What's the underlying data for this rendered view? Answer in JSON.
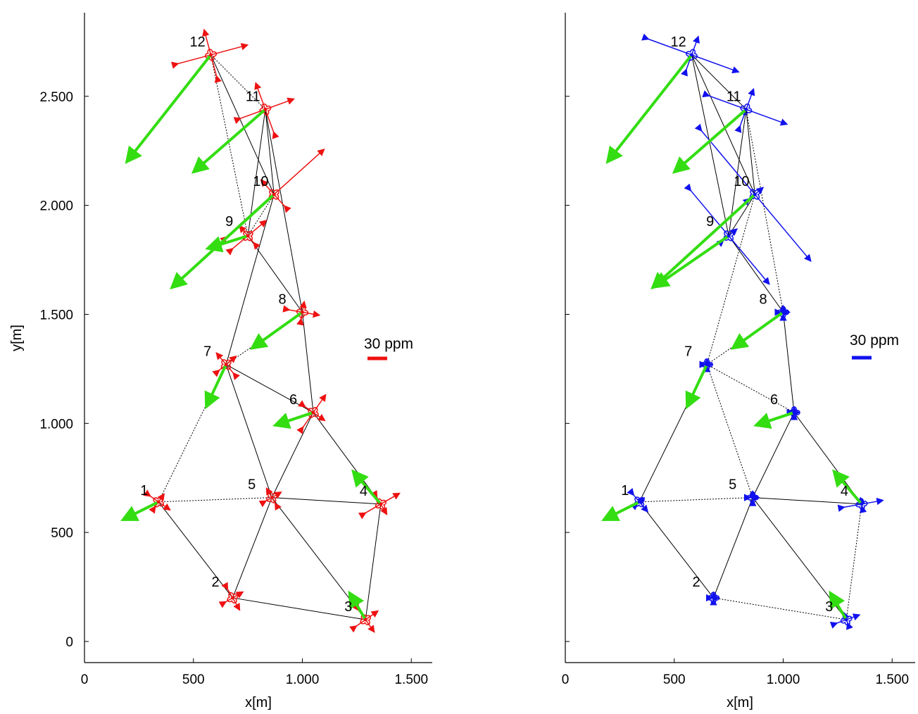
{
  "chart_data": [
    {
      "type": "network",
      "xlabel": "x[m]",
      "ylabel": "y[m]",
      "xlim": [
        0,
        1600
      ],
      "ylim": [
        -100,
        2900
      ],
      "xticks": [
        0,
        500,
        1000,
        1500
      ],
      "xtick_labels": [
        "0",
        "500",
        "1.000",
        "1.500"
      ],
      "yticks": [
        0,
        500,
        1000,
        1500,
        2000,
        2500
      ],
      "ytick_labels": [
        "0",
        "500",
        "1.000",
        "1.500",
        "2.000",
        "2.500"
      ],
      "y_axis_labels_shown": true,
      "accent_color": "#ee1111",
      "scale_label": "30 ppm",
      "points": [
        {
          "id": "1",
          "label": "1",
          "x": 340,
          "y": 640
        },
        {
          "id": "2",
          "label": "2",
          "x": 680,
          "y": 200
        },
        {
          "id": "3",
          "label": "3",
          "x": 1290,
          "y": 100
        },
        {
          "id": "4",
          "label": "4",
          "x": 1360,
          "y": 630
        },
        {
          "id": "5",
          "label": "5",
          "x": 860,
          "y": 660
        },
        {
          "id": "6",
          "label": "6",
          "x": 1050,
          "y": 1050
        },
        {
          "id": "7",
          "label": "7",
          "x": 650,
          "y": 1270
        },
        {
          "id": "8",
          "label": "8",
          "x": 1000,
          "y": 1510
        },
        {
          "id": "9",
          "label": "9",
          "x": 750,
          "y": 1860
        },
        {
          "id": "10",
          "label": "10",
          "x": 870,
          "y": 2050
        },
        {
          "id": "11",
          "label": "11",
          "x": 830,
          "y": 2440
        },
        {
          "id": "12",
          "label": "12",
          "x": 580,
          "y": 2690
        }
      ],
      "edges": [
        {
          "from": "1",
          "to": "2",
          "dashed": false
        },
        {
          "from": "1",
          "to": "5",
          "dashed": true
        },
        {
          "from": "1",
          "to": "7",
          "dashed": true
        },
        {
          "from": "2",
          "to": "5",
          "dashed": false
        },
        {
          "from": "2",
          "to": "3",
          "dashed": false
        },
        {
          "from": "3",
          "to": "5",
          "dashed": false
        },
        {
          "from": "3",
          "to": "4",
          "dashed": false
        },
        {
          "from": "4",
          "to": "5",
          "dashed": false
        },
        {
          "from": "4",
          "to": "6",
          "dashed": false
        },
        {
          "from": "5",
          "to": "6",
          "dashed": false
        },
        {
          "from": "5",
          "to": "7",
          "dashed": false
        },
        {
          "from": "6",
          "to": "7",
          "dashed": false
        },
        {
          "from": "6",
          "to": "8",
          "dashed": false
        },
        {
          "from": "7",
          "to": "8",
          "dashed": true
        },
        {
          "from": "7",
          "to": "10",
          "dashed": false
        },
        {
          "from": "8",
          "to": "9",
          "dashed": false
        },
        {
          "from": "8",
          "to": "11",
          "dashed": false
        },
        {
          "from": "9",
          "to": "11",
          "dashed": false
        },
        {
          "from": "9",
          "to": "10",
          "dashed": true
        },
        {
          "from": "10",
          "to": "11",
          "dashed": false
        },
        {
          "from": "10",
          "to": "12",
          "dashed": false
        },
        {
          "from": "11",
          "to": "12",
          "dashed": true
        },
        {
          "from": "9",
          "to": "12",
          "dashed": true
        }
      ],
      "displacements": [
        {
          "point": "1",
          "dx": -140,
          "dy": -70
        },
        {
          "point": "3",
          "dx": -60,
          "dy": 100
        },
        {
          "point": "4",
          "dx": -110,
          "dy": 130
        },
        {
          "point": "6",
          "dx": -150,
          "dy": -50
        },
        {
          "point": "7",
          "dx": -80,
          "dy": -170
        },
        {
          "point": "8",
          "dx": -210,
          "dy": -150
        },
        {
          "point": "9",
          "dx": -160,
          "dy": -50
        },
        {
          "point": "10",
          "dx": -450,
          "dy": -410
        },
        {
          "point": "11",
          "dx": -310,
          "dy": -270
        },
        {
          "point": "12",
          "dx": -370,
          "dy": -470
        }
      ],
      "strain_crosses": [
        {
          "point": "1",
          "a1": 55,
          "a2": 35,
          "ang": -35
        },
        {
          "point": "2",
          "a1": 55,
          "a2": 45,
          "ang": -60
        },
        {
          "point": "3",
          "a1": 60,
          "a2": 60,
          "ang": -55
        },
        {
          "point": "4",
          "a1": 45,
          "a2": 90,
          "ang": -60
        },
        {
          "point": "5",
          "a1": 40,
          "a2": 40,
          "ang": 30
        },
        {
          "point": "6",
          "a1": 55,
          "a2": 90,
          "ang": -35
        },
        {
          "point": "7",
          "a1": 50,
          "a2": 60,
          "ang": 40
        },
        {
          "point": "8",
          "a1": 70,
          "a2": 40,
          "ang": -10
        },
        {
          "point": "9",
          "a1": 100,
          "a2": 50,
          "ang": 40
        },
        {
          "point": "10",
          "a1": 300,
          "a2": 80,
          "ang": 42
        },
        {
          "point": "11",
          "a1": 130,
          "a2": 120,
          "ang": 20
        },
        {
          "point": "12",
          "a1": 165,
          "a2": 110,
          "ang": 15
        }
      ]
    },
    {
      "type": "network",
      "xlabel": "x[m]",
      "ylabel": "",
      "xlim": [
        0,
        1600
      ],
      "ylim": [
        -100,
        2900
      ],
      "xticks": [
        0,
        500,
        1000,
        1500
      ],
      "xtick_labels": [
        "0",
        "500",
        "1.000",
        "1.500"
      ],
      "yticks": [
        0,
        500,
        1000,
        1500,
        2000,
        2500
      ],
      "ytick_labels": [],
      "y_axis_labels_shown": false,
      "accent_color": "#1111ee",
      "scale_label": "30 ppm",
      "points": [
        {
          "id": "1",
          "label": "1",
          "x": 340,
          "y": 640
        },
        {
          "id": "2",
          "label": "2",
          "x": 680,
          "y": 200
        },
        {
          "id": "3",
          "label": "3",
          "x": 1290,
          "y": 100
        },
        {
          "id": "4",
          "label": "4",
          "x": 1360,
          "y": 630
        },
        {
          "id": "5",
          "label": "5",
          "x": 860,
          "y": 660
        },
        {
          "id": "6",
          "label": "6",
          "x": 1050,
          "y": 1050
        },
        {
          "id": "7",
          "label": "7",
          "x": 650,
          "y": 1270
        },
        {
          "id": "8",
          "label": "8",
          "x": 1000,
          "y": 1510
        },
        {
          "id": "9",
          "label": "9",
          "x": 750,
          "y": 1860
        },
        {
          "id": "10",
          "label": "10",
          "x": 870,
          "y": 2050
        },
        {
          "id": "11",
          "label": "11",
          "x": 830,
          "y": 2440
        },
        {
          "id": "12",
          "label": "12",
          "x": 580,
          "y": 2690
        }
      ],
      "edges": [
        {
          "from": "1",
          "to": "2",
          "dashed": false
        },
        {
          "from": "1",
          "to": "5",
          "dashed": true
        },
        {
          "from": "1",
          "to": "7",
          "dashed": false
        },
        {
          "from": "2",
          "to": "5",
          "dashed": false
        },
        {
          "from": "2",
          "to": "3",
          "dashed": true
        },
        {
          "from": "3",
          "to": "5",
          "dashed": false
        },
        {
          "from": "3",
          "to": "4",
          "dashed": true
        },
        {
          "from": "4",
          "to": "5",
          "dashed": false
        },
        {
          "from": "4",
          "to": "6",
          "dashed": false
        },
        {
          "from": "5",
          "to": "6",
          "dashed": false
        },
        {
          "from": "5",
          "to": "7",
          "dashed": true
        },
        {
          "from": "6",
          "to": "7",
          "dashed": true
        },
        {
          "from": "6",
          "to": "8",
          "dashed": false
        },
        {
          "from": "7",
          "to": "8",
          "dashed": true
        },
        {
          "from": "7",
          "to": "10",
          "dashed": true
        },
        {
          "from": "8",
          "to": "9",
          "dashed": false
        },
        {
          "from": "8",
          "to": "11",
          "dashed": true
        },
        {
          "from": "9",
          "to": "11",
          "dashed": false
        },
        {
          "from": "9",
          "to": "10",
          "dashed": false
        },
        {
          "from": "10",
          "to": "11",
          "dashed": false
        },
        {
          "from": "10",
          "to": "12",
          "dashed": false
        },
        {
          "from": "11",
          "to": "12",
          "dashed": false
        },
        {
          "from": "9",
          "to": "12",
          "dashed": false
        }
      ],
      "displacements": [
        {
          "point": "1",
          "dx": -140,
          "dy": -70
        },
        {
          "point": "3",
          "dx": -60,
          "dy": 100
        },
        {
          "point": "4",
          "dx": -110,
          "dy": 130
        },
        {
          "point": "6",
          "dx": -150,
          "dy": -50
        },
        {
          "point": "7",
          "dx": -80,
          "dy": -170
        },
        {
          "point": "8",
          "dx": -210,
          "dy": -150
        },
        {
          "point": "9",
          "dx": -320,
          "dy": -220
        },
        {
          "point": "10",
          "dx": -450,
          "dy": -410
        },
        {
          "point": "11",
          "dx": -310,
          "dy": -270
        },
        {
          "point": "12",
          "dx": -370,
          "dy": -470
        }
      ],
      "strain_crosses": [
        {
          "point": "1",
          "a1": 50,
          "a2": 20,
          "ang": -50
        },
        {
          "point": "2",
          "a1": 15,
          "a2": 15,
          "ang": 0
        },
        {
          "point": "3",
          "a1": 55,
          "a2": 25,
          "ang": 20
        },
        {
          "point": "4",
          "a1": 90,
          "a2": 20,
          "ang": 10
        },
        {
          "point": "5",
          "a1": 20,
          "a2": 20,
          "ang": 0
        },
        {
          "point": "6",
          "a1": 15,
          "a2": 15,
          "ang": 0
        },
        {
          "point": "7",
          "a1": 15,
          "a2": 15,
          "ang": 0
        },
        {
          "point": "8",
          "a1": 20,
          "a2": 20,
          "ang": 0
        },
        {
          "point": "9",
          "a1": 280,
          "a2": 40,
          "ang": -50
        },
        {
          "point": "10",
          "a1": 390,
          "a2": 40,
          "ang": -50
        },
        {
          "point": "11",
          "a1": 190,
          "a2": 90,
          "ang": -20
        },
        {
          "point": "12",
          "a1": 220,
          "a2": 80,
          "ang": -20
        }
      ]
    }
  ]
}
